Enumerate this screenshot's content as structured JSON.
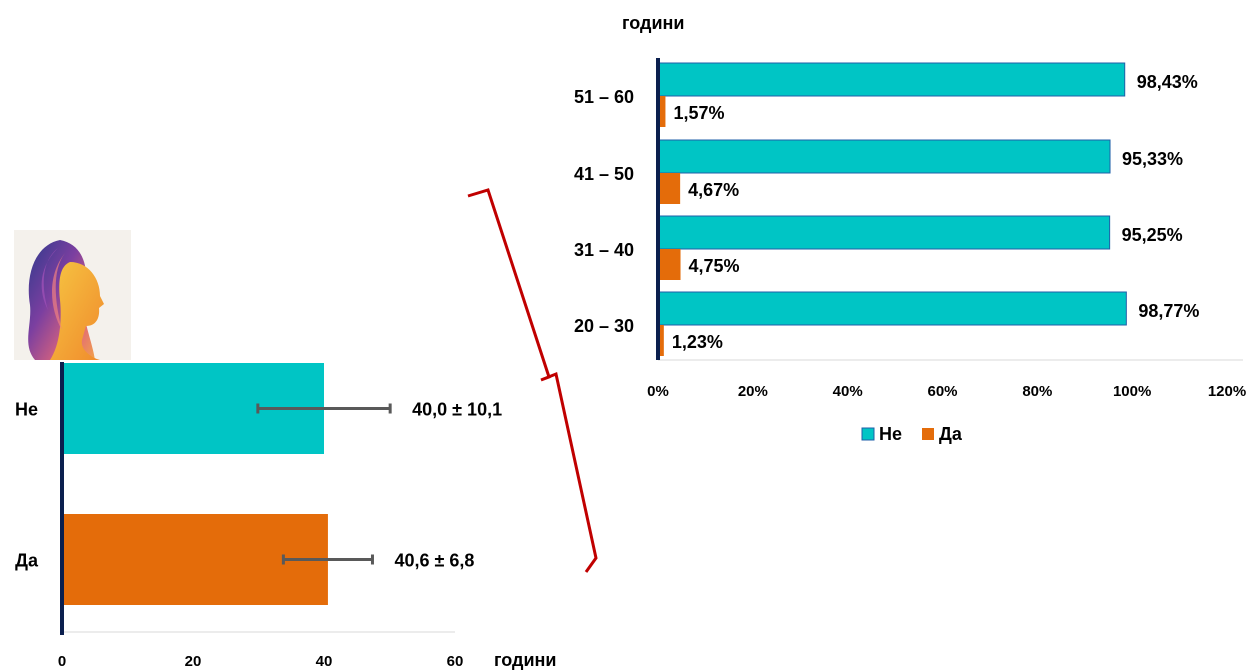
{
  "colors": {
    "ne": "#00C5C5",
    "da": "#E46C0A",
    "axis": "#0B1F4E",
    "bracket": "#C00000",
    "errorbar": "#595959"
  },
  "illustration": {
    "icon": "woman-profile-icon"
  },
  "chart_data": [
    {
      "type": "bar",
      "orientation": "horizontal",
      "categories": [
        "Не",
        "Да"
      ],
      "values": [
        40.0,
        40.6
      ],
      "errors": [
        10.1,
        6.8
      ],
      "data_labels": [
        "40,0 ± 10,1",
        "40,6 ± 6,8"
      ],
      "xlabel": "години",
      "xlim": [
        0,
        60
      ],
      "xticks": [
        "0",
        "20",
        "40",
        "60"
      ]
    },
    {
      "type": "bar",
      "orientation": "horizontal",
      "ylabel": "години",
      "categories": [
        "51 – 60",
        "41 – 50",
        "31 – 40",
        "20 – 30"
      ],
      "series": [
        {
          "name": "Не",
          "values": [
            98.43,
            95.33,
            95.25,
            98.77
          ],
          "labels": [
            "98,43%",
            "95,33%",
            "95,25%",
            "98,77%"
          ]
        },
        {
          "name": "Да",
          "values": [
            1.57,
            4.67,
            4.75,
            1.23
          ],
          "labels": [
            "1,57%",
            "4,67%",
            "4,75%",
            "1,23%"
          ]
        }
      ],
      "xlim": [
        0,
        120
      ],
      "xticks": [
        "0%",
        "20%",
        "40%",
        "60%",
        "80%",
        "100%",
        "120%"
      ],
      "legend": "bottom"
    }
  ]
}
